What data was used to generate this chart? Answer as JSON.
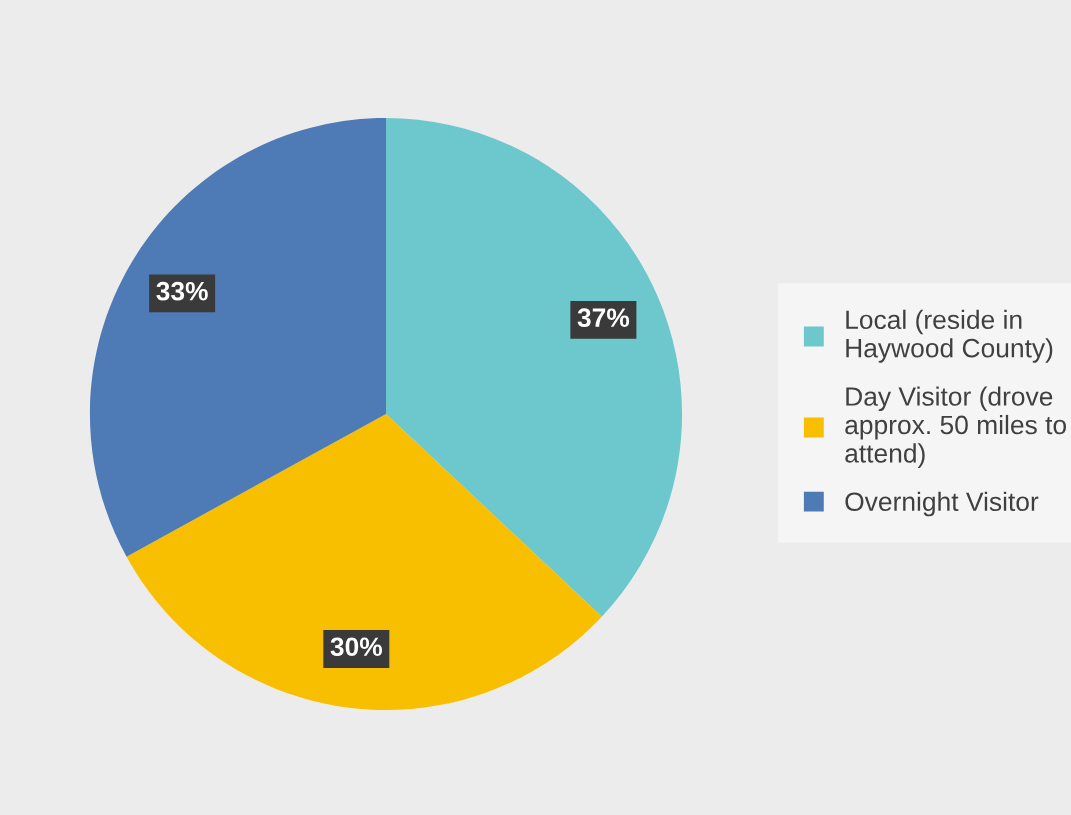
{
  "chart_data": {
    "type": "pie",
    "categories": [
      "Local (reside in Haywood County)",
      "Day Visitor (drove approx. 50 miles to attend)",
      "Overnight Visitor"
    ],
    "values": [
      37,
      30,
      33
    ],
    "colors": [
      "#6cc8cc",
      "#f8bf00",
      "#4e7ab5"
    ],
    "value_labels": [
      "37%",
      "30%",
      "33%"
    ],
    "legend": "right"
  }
}
